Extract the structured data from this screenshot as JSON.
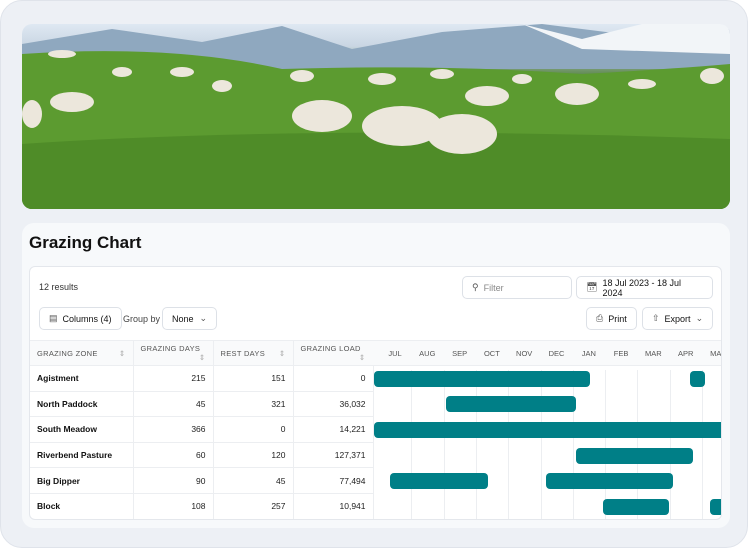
{
  "hero": {
    "image": "sheep grazing on green pasture with mountains"
  },
  "title": "Grazing Chart",
  "toolbar": {
    "results": "12 results",
    "filter_placeholder": "Filter",
    "date_range": "18 Jul 2023 - 18 Jul 2024",
    "columns": "Columns (4)",
    "group_by_label": "Group by",
    "group_by_value": "None",
    "print": "Print",
    "export": "Export"
  },
  "icons": {
    "filter": "search-icon",
    "date": "calendar-icon",
    "columns": "columns-icon",
    "print": "printer-icon",
    "export": "share-icon"
  },
  "columns": [
    "GRAZING ZONE",
    "GRAZING DAYS",
    "REST DAYS",
    "GRAZING LOAD"
  ],
  "months": [
    "JUL",
    "AUG",
    "SEP",
    "OCT",
    "NOV",
    "DEC",
    "JAN",
    "FEB",
    "MAR",
    "APR",
    "MAY"
  ],
  "accent": "#007f87",
  "rows": [
    {
      "zone": "Agistment",
      "grazing_days": "215",
      "rest_days": "151",
      "load": "0",
      "periods": [
        [
          "2023-07-01",
          "2024-01-21"
        ],
        [
          "2024-04-24",
          "2024-05-09"
        ]
      ]
    },
    {
      "zone": "North Paddock",
      "grazing_days": "45",
      "rest_days": "321",
      "load": "36,032",
      "periods": [
        [
          "2023-09-07",
          "2024-01-08"
        ]
      ]
    },
    {
      "zone": "South Meadow",
      "grazing_days": "366",
      "rest_days": "0",
      "load": "14,221",
      "periods": [
        [
          "2023-07-01",
          "2024-07-01"
        ]
      ]
    },
    {
      "zone": "Riverbend Pasture",
      "grazing_days": "60",
      "rest_days": "120",
      "load": "127,371",
      "periods": [
        [
          "2024-01-08",
          "2024-04-27"
        ]
      ]
    },
    {
      "zone": "Big Dipper",
      "grazing_days": "90",
      "rest_days": "45",
      "load": "77,494",
      "periods": [
        [
          "2023-07-16",
          "2023-10-17"
        ],
        [
          "2023-12-10",
          "2024-04-08"
        ]
      ]
    },
    {
      "zone": "Block",
      "grazing_days": "108",
      "rest_days": "257",
      "load": "10,941",
      "periods": [
        [
          "2024-02-02",
          "2024-04-05"
        ],
        [
          "2024-05-13",
          "2024-06-10"
        ]
      ]
    }
  ]
}
